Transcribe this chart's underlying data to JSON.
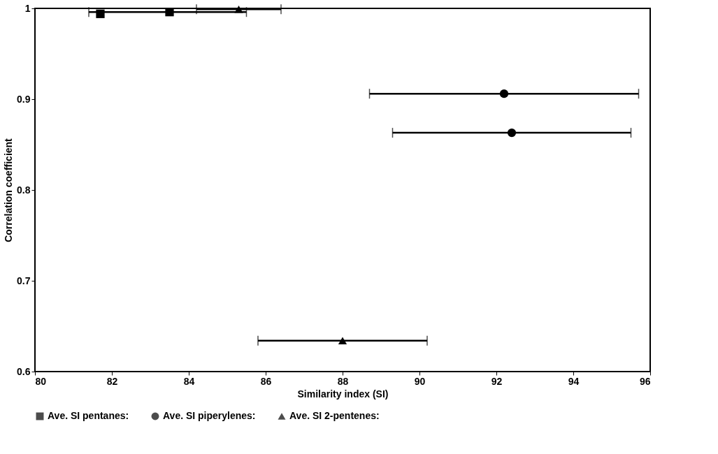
{
  "chart_data": {
    "type": "scatter",
    "xlabel": "Similarity index (SI)",
    "ylabel": "Correlation coefficient",
    "xlim": [
      80,
      96
    ],
    "xticks": [
      80,
      82,
      84,
      86,
      88,
      90,
      92,
      94,
      96
    ],
    "ylim": [
      0.6,
      1
    ],
    "yticks": [
      0.6,
      0.7,
      0.8,
      0.9,
      1
    ],
    "grid": false,
    "legend": "bottom",
    "series": [
      {
        "name": "Ave. SI pentanes:",
        "color": "#000000",
        "marker": "square",
        "x": [
          81.7,
          83.5
        ],
        "values": [
          0.994,
          0.996
        ],
        "xerrors": [
          null,
          [
            81.4,
            85.5
          ]
        ]
      },
      {
        "name": "Ave. SI piperylenes:",
        "color": "#000000",
        "marker": "circle",
        "x": [
          92.2,
          92.4
        ],
        "values": [
          0.906,
          0.863
        ],
        "xerrors": [
          [
            88.7,
            95.7
          ],
          [
            89.3,
            95.5
          ]
        ]
      },
      {
        "name": "Ave. SI 2-pentenes:",
        "color": "#000000",
        "marker": "triangle",
        "x": [
          85.3,
          88.0
        ],
        "values": [
          0.999,
          0.634
        ],
        "xerrors": [
          [
            84.2,
            86.4
          ],
          [
            85.8,
            90.2
          ]
        ]
      }
    ]
  }
}
